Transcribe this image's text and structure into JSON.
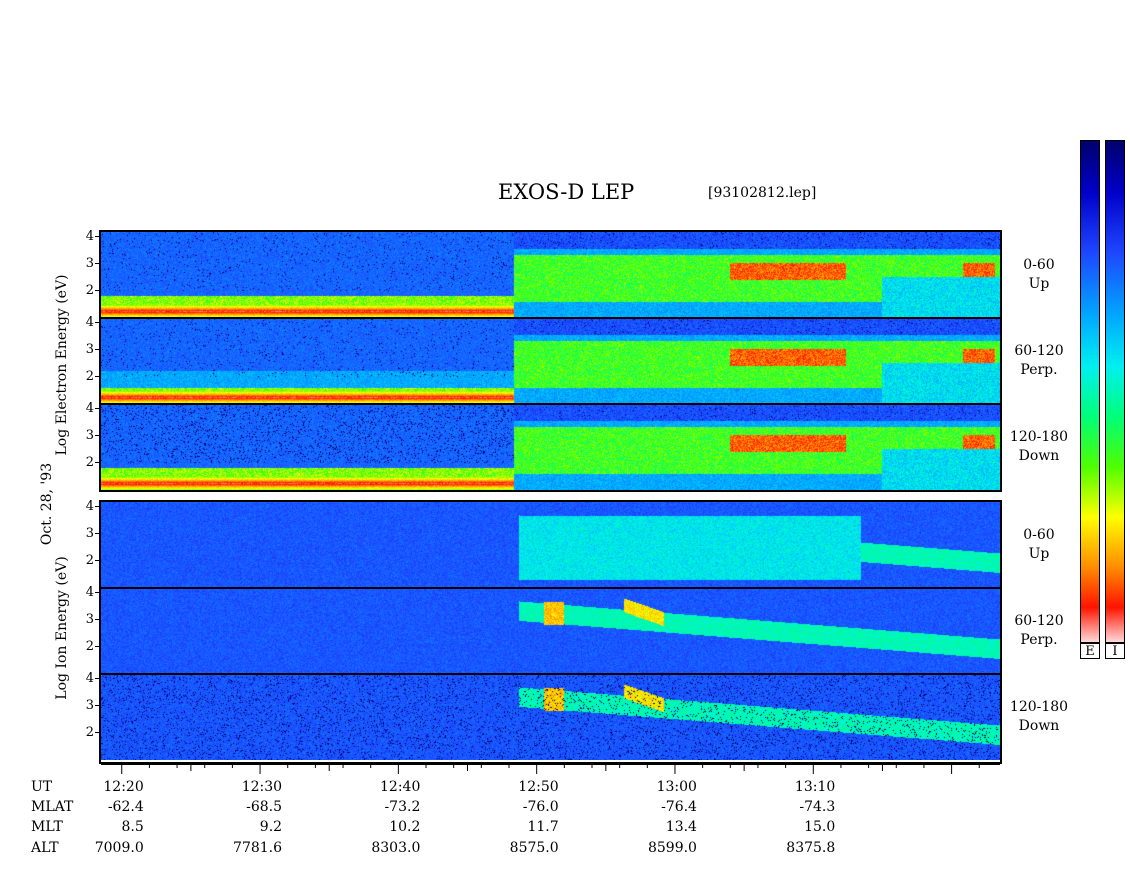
{
  "chart_data": {
    "type": "heatmap",
    "title": "EXOS-D LEP",
    "file": "[93102812.lep]",
    "y_ticks": [
      "4",
      "3",
      "2"
    ],
    "y_ticks_bottom": [
      "4",
      "3",
      "2"
    ],
    "electron_label": {
      "line1": "Log",
      "line2": "Electron",
      "line3": "Energy",
      "line4": "(eV)"
    },
    "ion_label": {
      "line1": "Log",
      "line2": "Ion",
      "line3": "Energy",
      "line4": "(eV)"
    },
    "date_label": "Oct. 28, '93",
    "panels": [
      {
        "species": "electron",
        "pitch": "0-60",
        "dir": "Up"
      },
      {
        "species": "electron",
        "pitch": "60-120",
        "dir": "Perp."
      },
      {
        "species": "electron",
        "pitch": "120-180",
        "dir": "Down"
      },
      {
        "species": "ion",
        "pitch": "0-60",
        "dir": "Up"
      },
      {
        "species": "ion",
        "pitch": "60-120",
        "dir": "Perp."
      },
      {
        "species": "ion",
        "pitch": "120-180",
        "dir": "Down"
      }
    ],
    "x_ticks": [
      "12:20",
      "12:30",
      "12:40",
      "12:50",
      "13:00",
      "13:10"
    ],
    "x_tick_minutes": [
      740,
      750,
      760,
      770,
      780,
      790
    ],
    "x_range_minutes": [
      738.5,
      803.5
    ],
    "orbit_rows": [
      {
        "label": "UT",
        "values": [
          "12:20",
          "12:30",
          "12:40",
          "12:50",
          "13:00",
          "13:10"
        ]
      },
      {
        "label": "MLAT",
        "values": [
          "-62.4",
          "-68.5",
          "-73.2",
          "-76.0",
          "-76.4",
          "-74.3"
        ]
      },
      {
        "label": "MLT",
        "values": [
          "8.5",
          "9.2",
          "10.2",
          "11.7",
          "13.4",
          "15.0"
        ]
      },
      {
        "label": "ALT",
        "values": [
          "7009.0",
          "7781.6",
          "8303.0",
          "8575.0",
          "8599.0",
          "8375.8"
        ]
      }
    ],
    "colorbar_labels": [
      "E",
      "I"
    ],
    "colors": {
      "background": "#000080",
      "low": "#1f3fff",
      "mid": "#00e0ff",
      "high": "#00ff40",
      "peak_yellow": "#ffff00",
      "peak_red": "#ff2000"
    }
  }
}
